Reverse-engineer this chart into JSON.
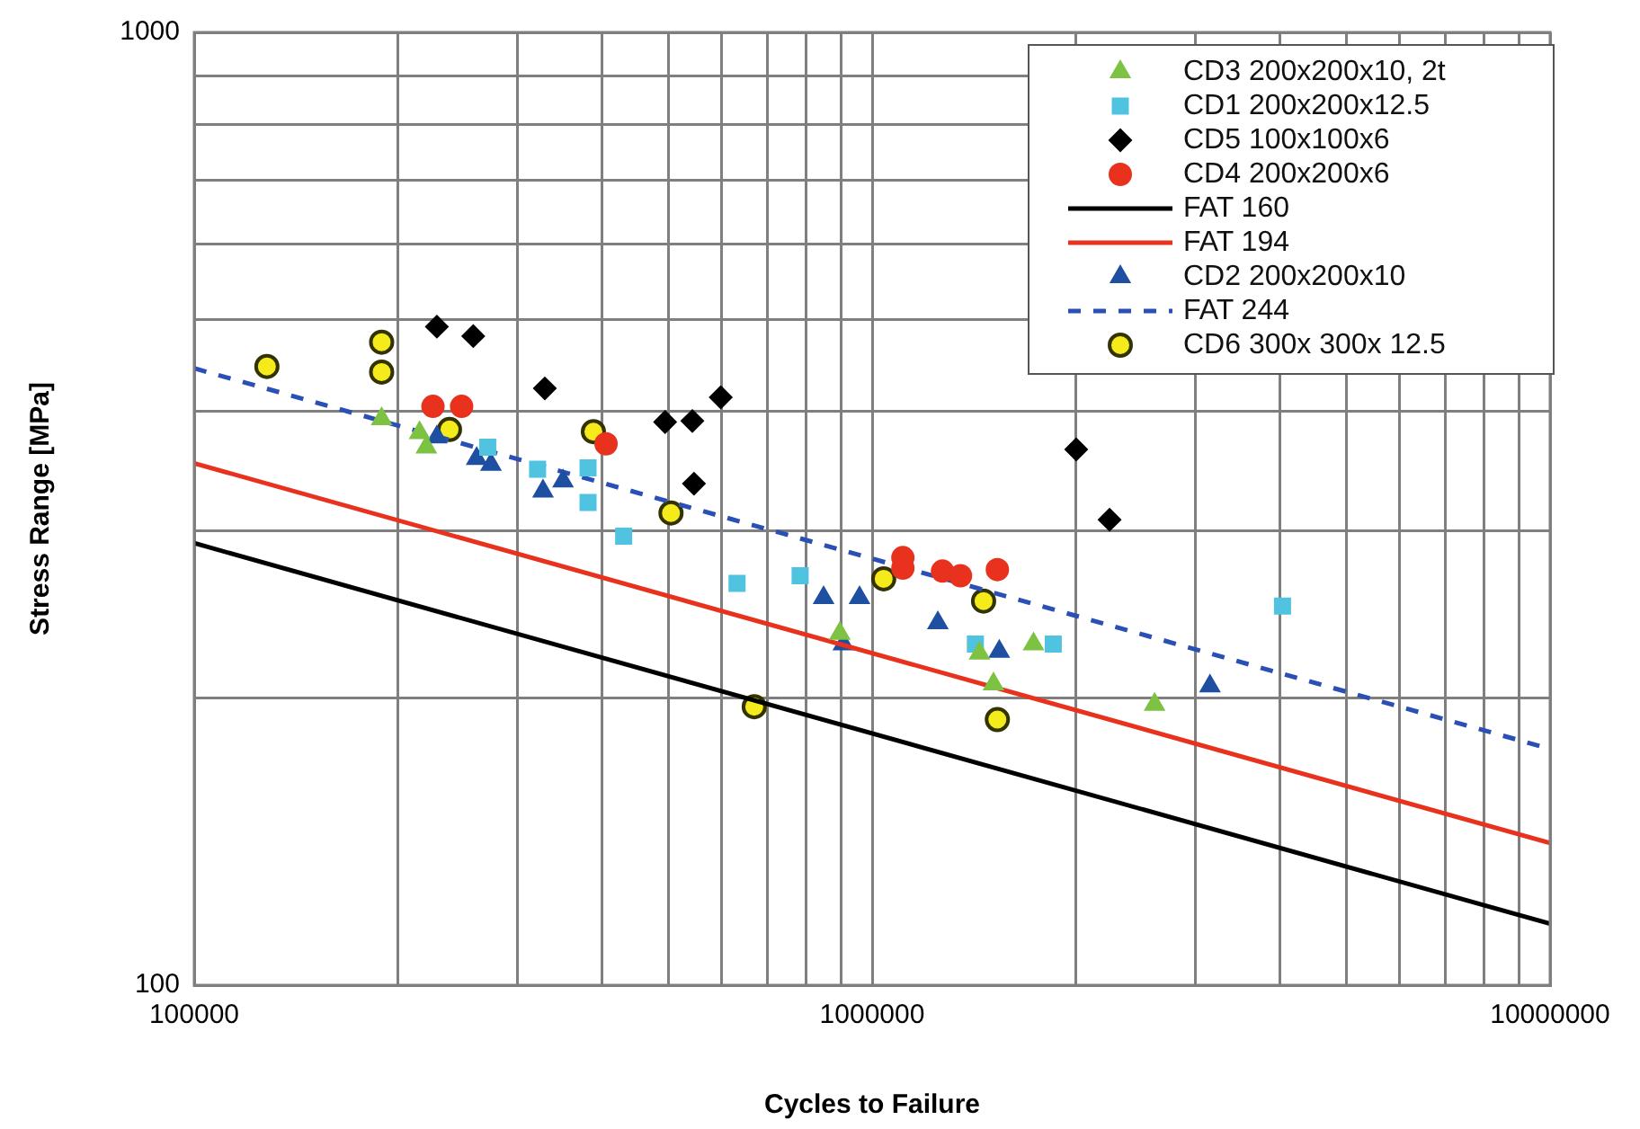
{
  "chart_data": {
    "type": "scatter",
    "xlabel": "Cycles to Failure",
    "ylabel": "Stress Range [MPa]",
    "log": "xy",
    "grid": true,
    "legend": "top right",
    "xlim": [
      100000,
      10000000
    ],
    "ylim": [
      100,
      1000
    ],
    "xticks": [
      100000,
      {
        "value": 200000,
        "label": null
      },
      {
        "value": 300000,
        "label": null
      },
      {
        "value": 400000,
        "label": null
      },
      {
        "value": 500000,
        "label": null
      },
      {
        "value": 600000,
        "label": null
      },
      {
        "value": 700000,
        "label": null
      },
      {
        "value": 800000,
        "label": null
      },
      {
        "value": 900000,
        "label": null
      },
      1000000,
      {
        "value": 2000000,
        "label": null
      },
      {
        "value": 3000000,
        "label": null
      },
      {
        "value": 4000000,
        "label": null
      },
      {
        "value": 5000000,
        "label": null
      },
      {
        "value": 6000000,
        "label": null
      },
      {
        "value": 7000000,
        "label": null
      },
      {
        "value": 8000000,
        "label": null
      },
      {
        "value": 9000000,
        "label": null
      },
      10000000
    ],
    "yticks": [
      100,
      {
        "value": 200,
        "label": null
      },
      {
        "value": 300,
        "label": null
      },
      {
        "value": 400,
        "label": null
      },
      {
        "value": 500,
        "label": null
      },
      {
        "value": 600,
        "label": null
      },
      {
        "value": 700,
        "label": null
      },
      {
        "value": 800,
        "label": null
      },
      {
        "value": 900,
        "label": null
      },
      1000
    ],
    "series": [
      {
        "name": "CD3 200x200x10, 2t",
        "marker": "triangle",
        "color": "#7dc242",
        "x": [
          189000,
          215000,
          220000,
          896000,
          1440000,
          1730000,
          1510000,
          2610000
        ],
        "values": [
          393,
          380,
          367,
          234,
          223,
          228,
          207,
          197
        ]
      },
      {
        "name": "CD1 200x200x12.5",
        "marker": "square",
        "color": "#4fc3e0",
        "x": [
          271000,
          321000,
          381000,
          381000,
          430000,
          632000,
          783000,
          1420000,
          1850000,
          4030000
        ],
        "values": [
          367,
          348,
          349,
          321,
          296,
          264,
          269,
          228,
          228,
          250
        ]
      },
      {
        "name": "CD5 100x100x6",
        "marker": "diamond",
        "color": "#000000",
        "x": [
          228000,
          258000,
          329000,
          495000,
          543000,
          598000,
          546000,
          2000000,
          2240000
        ],
        "values": [
          491,
          480,
          423,
          390,
          391,
          414,
          336,
          365,
          308
        ]
      },
      {
        "name": "CD4 200x200x6",
        "marker": "circle",
        "color": "#e8321e",
        "x": [
          225000,
          248000,
          405000,
          1110000,
          1110000,
          1270000,
          1350000,
          1530000
        ],
        "values": [
          405,
          405,
          370,
          281,
          274,
          272,
          269,
          273
        ]
      },
      {
        "name": "FAT 160",
        "type": "line",
        "marker": "none",
        "line_style": "solid",
        "color": "#000000",
        "x": [
          100000,
          10000000
        ],
        "values": [
          291,
          116
        ]
      },
      {
        "name": "FAT 194",
        "type": "line",
        "marker": "none",
        "line_style": "solid",
        "color": "#e8321e",
        "x": [
          100000,
          10000000
        ],
        "values": [
          353,
          141
        ]
      },
      {
        "name": "CD2 200x200x10",
        "marker": "triangle",
        "color": "#1f4fa0",
        "x": [
          228000,
          261000,
          274000,
          327000,
          350000,
          848000,
          958000,
          907000,
          1250000,
          1540000,
          3150000
        ],
        "values": [
          376,
          357,
          352,
          330,
          338,
          255,
          255,
          228,
          240,
          224,
          206
        ]
      },
      {
        "name": "FAT 244",
        "type": "line",
        "marker": "none",
        "line_style": "dashed",
        "color": "#2a4fb5",
        "x": [
          100000,
          10000000
        ],
        "values": [
          444,
          177
        ]
      },
      {
        "name": "CD6 300x 300x 12.5",
        "marker": "circle",
        "color": "#f5eb1a",
        "x": [
          128000,
          189000,
          189000,
          238000,
          388000,
          505000,
          670000,
          1040000,
          1460000,
          1530000
        ],
        "values": [
          446,
          473,
          440,
          383,
          381,
          313,
          196,
          267,
          253,
          190
        ]
      }
    ]
  }
}
